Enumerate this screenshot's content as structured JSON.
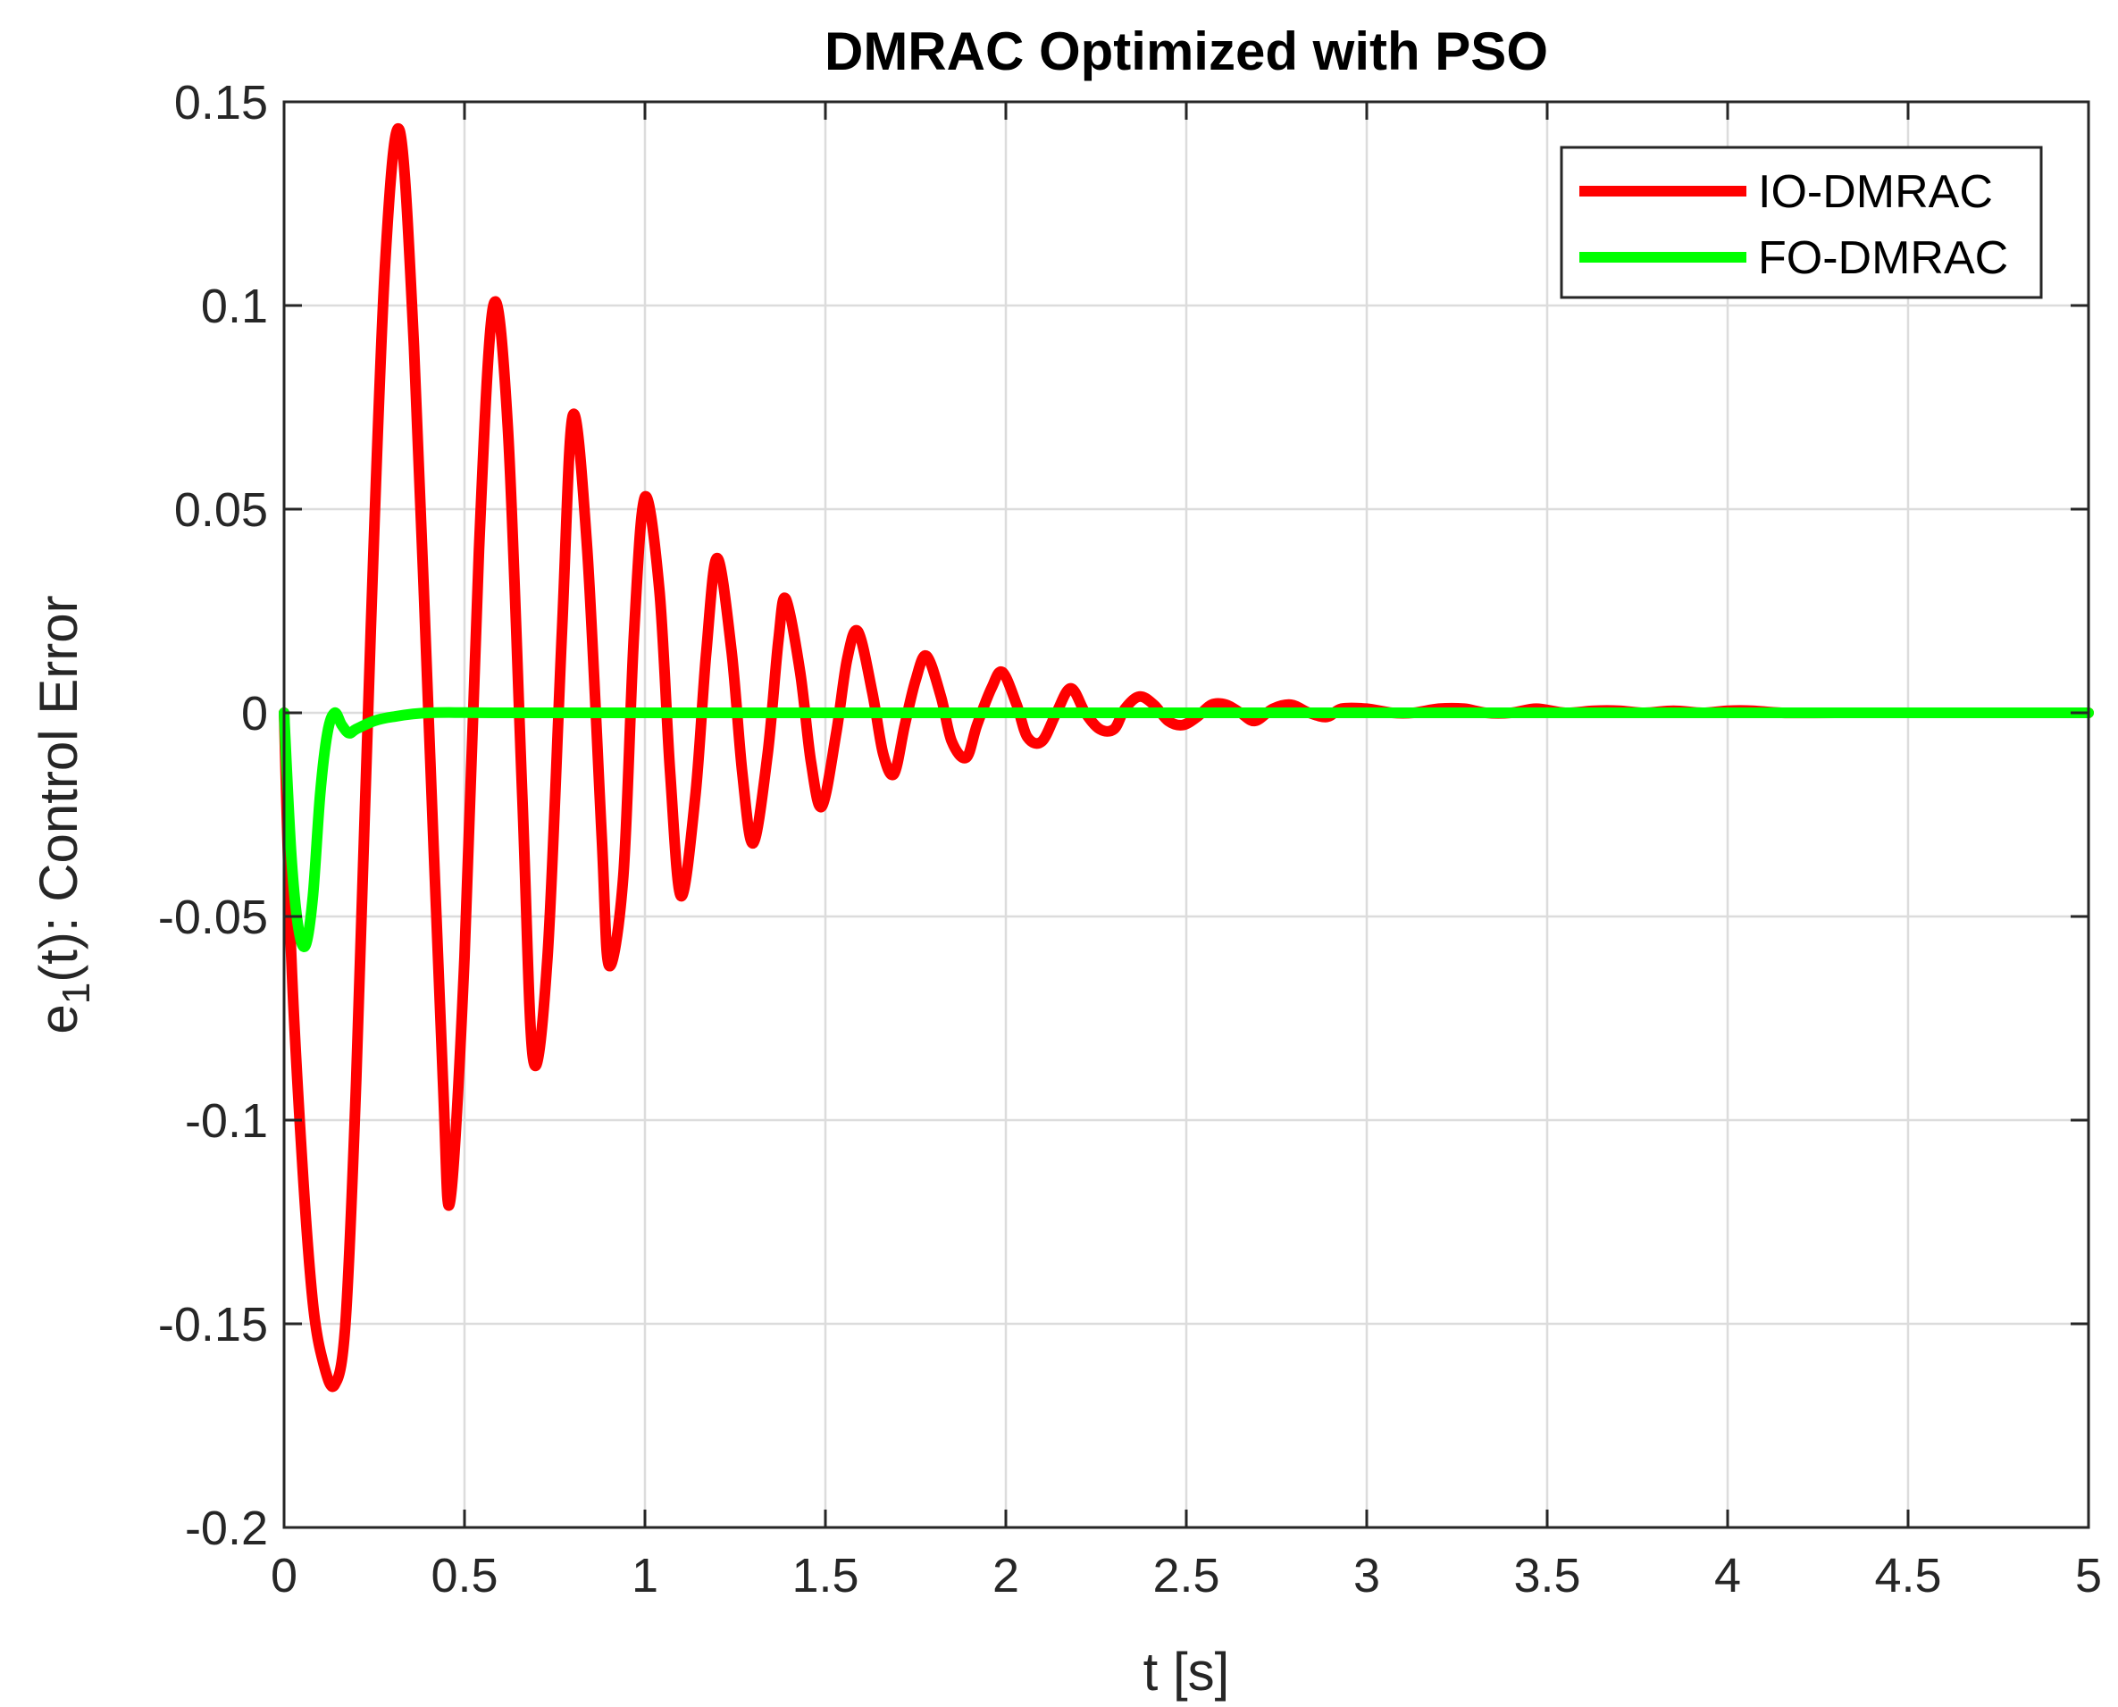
{
  "chart_data": {
    "type": "line",
    "title": "DMRAC Optimized with PSO",
    "xlabel": "t [s]",
    "ylabel_main": "e",
    "ylabel_sub": "1",
    "ylabel_rest": "(t): Control Error",
    "xlim": [
      0,
      5
    ],
    "ylim": [
      -0.2,
      0.15
    ],
    "xticks": [
      0,
      0.5,
      1,
      1.5,
      2,
      2.5,
      3,
      3.5,
      4,
      4.5,
      5
    ],
    "xtick_labels": [
      "0",
      "0.5",
      "1",
      "1.5",
      "2",
      "2.5",
      "3",
      "3.5",
      "4",
      "4.5",
      "5"
    ],
    "yticks": [
      -0.2,
      -0.15,
      -0.1,
      -0.05,
      0,
      0.05,
      0.1,
      0.15
    ],
    "ytick_labels": [
      "-0.2",
      "-0.15",
      "-0.1",
      "-0.05",
      "0",
      "0.05",
      "0.1",
      "0.15"
    ],
    "grid": true,
    "legend_position": "top-right",
    "series": [
      {
        "name": "IO-DMRAC",
        "color": "#ff0000",
        "x": [
          0,
          0.02,
          0.05,
          0.08,
          0.11,
          0.14,
          0.17,
          0.2,
          0.24,
          0.28,
          0.32,
          0.36,
          0.4,
          0.44,
          0.46,
          0.5,
          0.54,
          0.58,
          0.62,
          0.66,
          0.69,
          0.73,
          0.77,
          0.8,
          0.84,
          0.88,
          0.9,
          0.94,
          0.97,
          1.0,
          1.04,
          1.07,
          1.1,
          1.14,
          1.17,
          1.2,
          1.24,
          1.27,
          1.3,
          1.34,
          1.37,
          1.39,
          1.43,
          1.46,
          1.49,
          1.53,
          1.56,
          1.59,
          1.63,
          1.66,
          1.69,
          1.72,
          1.75,
          1.78,
          1.82,
          1.85,
          1.89,
          1.92,
          1.96,
          1.99,
          2.03,
          2.06,
          2.1,
          2.14,
          2.18,
          2.22,
          2.26,
          2.3,
          2.33,
          2.37,
          2.41,
          2.45,
          2.49,
          2.53,
          2.57,
          2.61,
          2.65,
          2.69,
          2.74,
          2.79,
          2.84,
          2.89,
          2.93,
          3.0,
          3.07,
          3.13,
          3.2,
          3.27,
          3.33,
          3.4,
          3.47,
          3.55,
          3.63,
          3.7,
          3.77,
          3.85,
          3.93,
          4.0,
          4.07,
          4.15,
          4.3,
          4.5,
          4.7,
          4.85,
          5.0
        ],
        "y": [
          0,
          -0.06,
          -0.11,
          -0.145,
          -0.16,
          -0.165,
          -0.15,
          -0.09,
          0.02,
          0.11,
          0.143,
          0.09,
          0.0,
          -0.09,
          -0.12,
          -0.06,
          0.04,
          0.1,
          0.07,
          -0.02,
          -0.085,
          -0.06,
          0.02,
          0.073,
          0.04,
          -0.03,
          -0.062,
          -0.04,
          0.02,
          0.053,
          0.03,
          -0.015,
          -0.045,
          -0.02,
          0.015,
          0.038,
          0.015,
          -0.015,
          -0.032,
          -0.01,
          0.018,
          0.028,
          0.01,
          -0.012,
          -0.023,
          -0.005,
          0.013,
          0.02,
          0.005,
          -0.01,
          -0.015,
          -0.003,
          0.008,
          0.014,
          0.004,
          -0.007,
          -0.011,
          -0.003,
          0.006,
          0.01,
          0.002,
          -0.006,
          -0.007,
          0.0,
          0.006,
          0.0,
          -0.004,
          -0.004,
          0.001,
          0.004,
          0.002,
          -0.002,
          -0.003,
          -0.001,
          0.002,
          0.002,
          0.0,
          -0.002,
          0.001,
          0.002,
          0.0,
          -0.001,
          0.001,
          0.001,
          0.0,
          0.0,
          0.001,
          0.001,
          0.0,
          0.0,
          0.001,
          0.0,
          0.0005,
          0.0005,
          0.0,
          0.0005,
          0.0,
          0.0005,
          0.0005,
          0.0,
          0.0,
          0.0,
          0.0,
          0.0,
          0.0
        ]
      },
      {
        "name": "FO-DMRAC",
        "color": "#00ff00",
        "x": [
          0,
          0.02,
          0.04,
          0.06,
          0.08,
          0.1,
          0.12,
          0.14,
          0.16,
          0.18,
          0.2,
          0.25,
          0.3,
          0.4,
          0.6,
          1.0,
          2.0,
          3.0,
          4.0,
          5.0
        ],
        "y": [
          0,
          -0.035,
          -0.053,
          -0.057,
          -0.045,
          -0.02,
          -0.005,
          0.0,
          -0.003,
          -0.005,
          -0.004,
          -0.002,
          -0.001,
          0.0,
          0.0,
          0.0,
          0.0,
          0.0,
          0.0,
          0.0
        ]
      }
    ]
  }
}
